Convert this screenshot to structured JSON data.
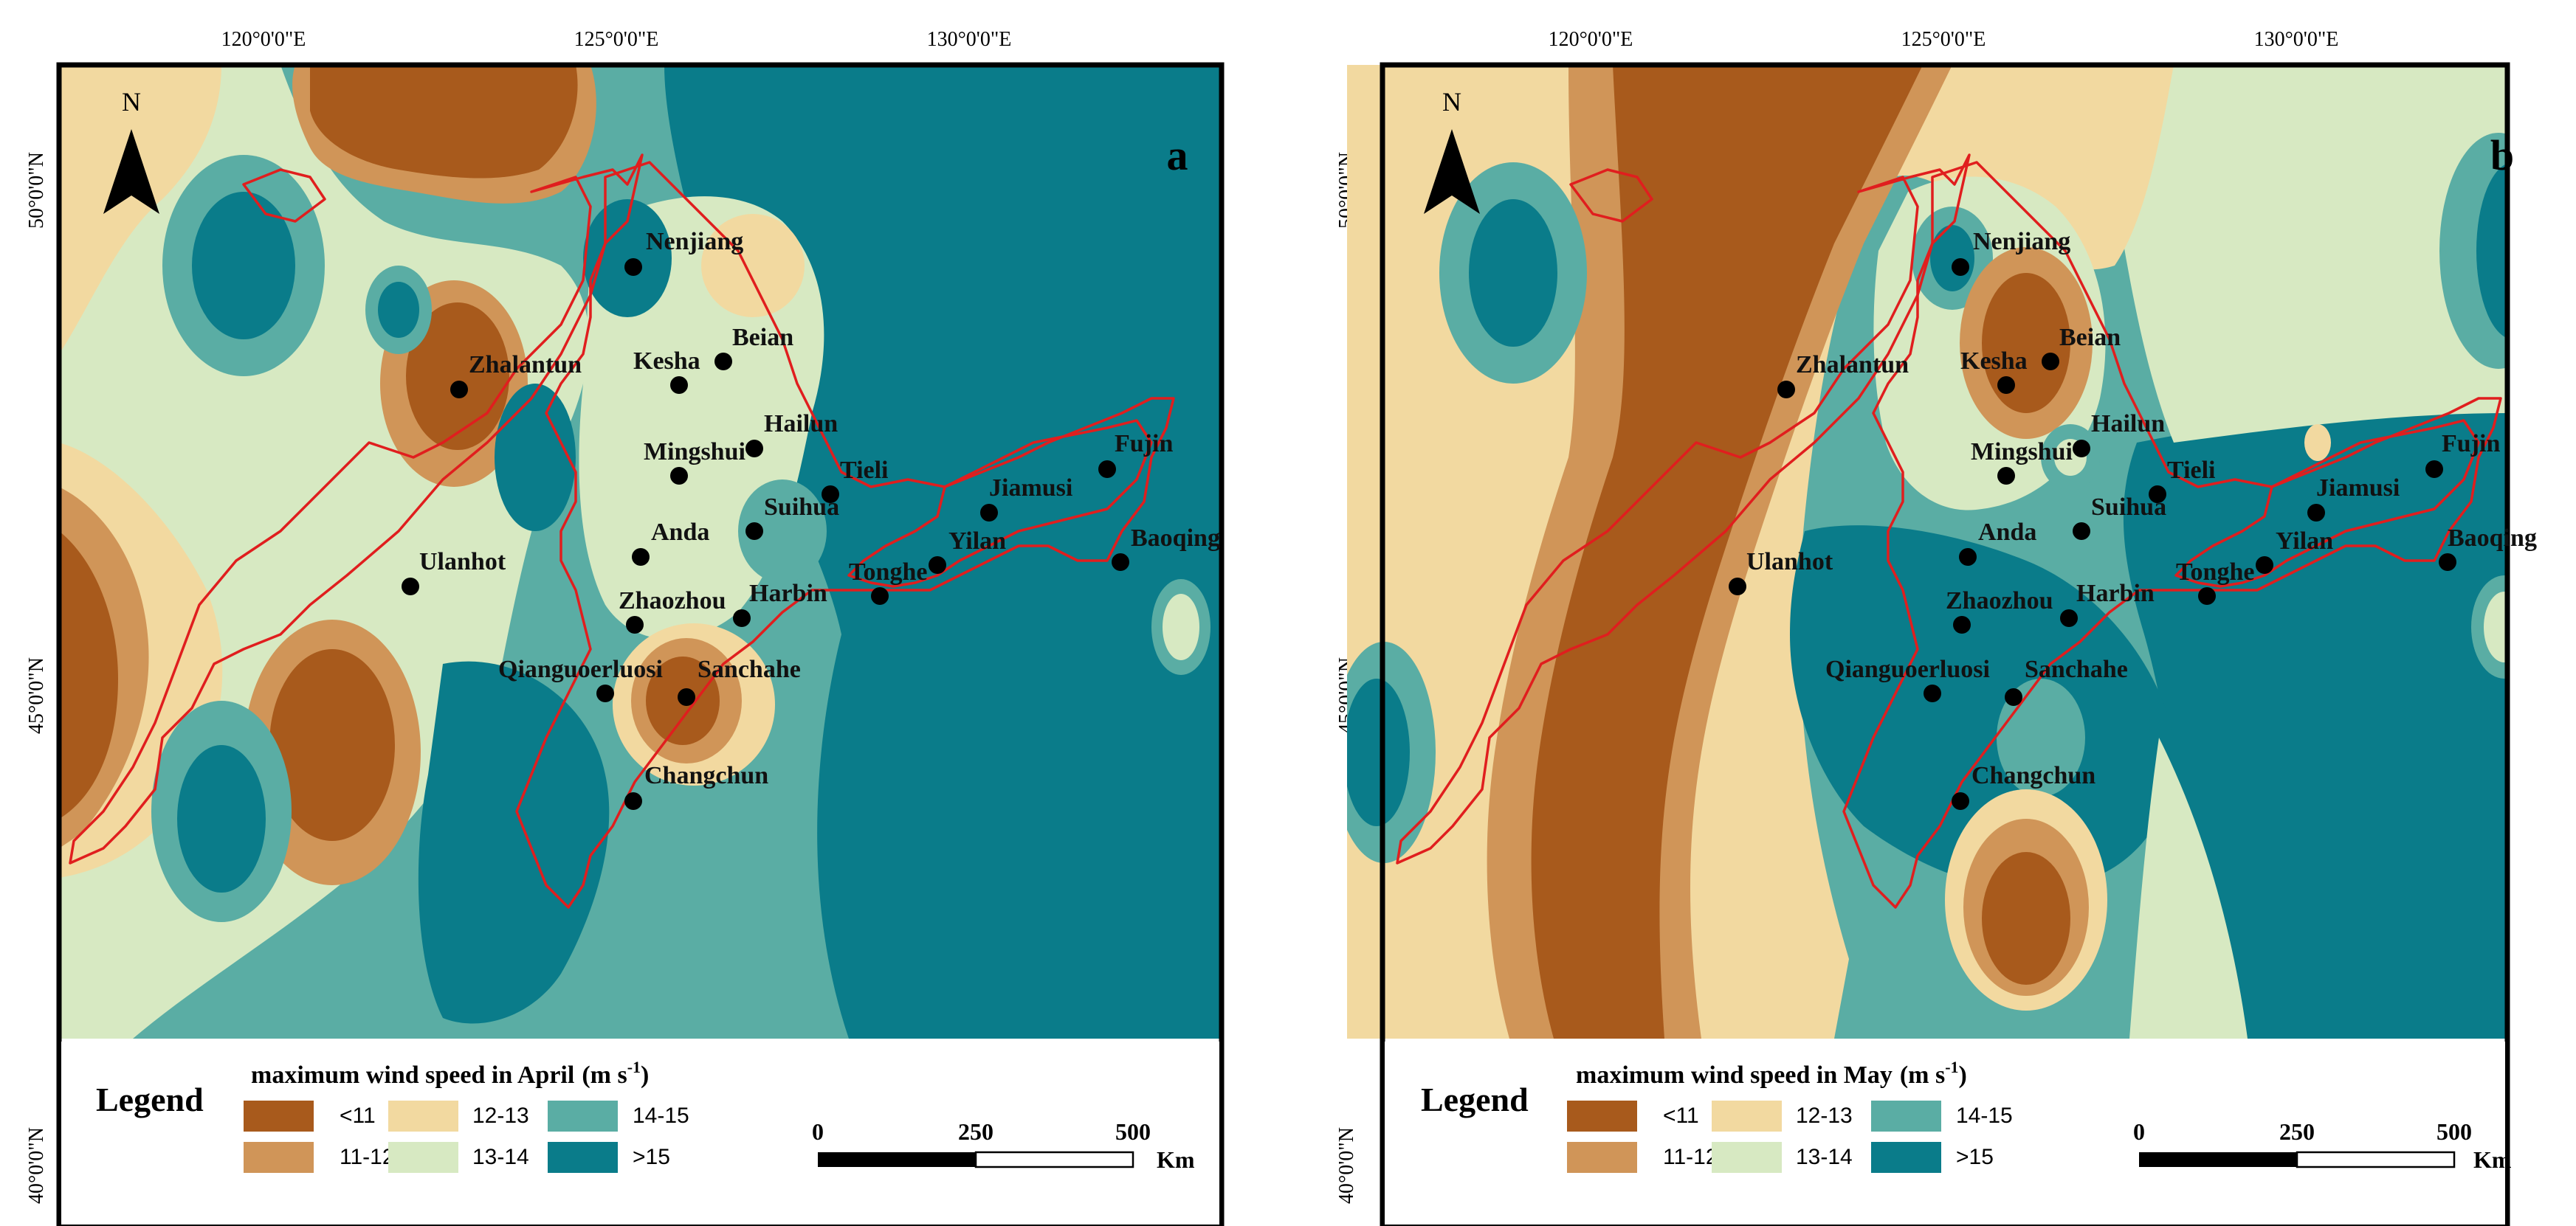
{
  "colors": {
    "lt11": "#a85a1c",
    "r11_12": "#d09558",
    "r12_13": "#f2d9a0",
    "r13_14": "#d7e9c2",
    "r14_15": "#5aada4",
    "gt15": "#0a7c8a",
    "boundary": "#e01e1e",
    "city": "#000000"
  },
  "lat_ticks": [
    "50°0'0\"N",
    "45°0'0\"N",
    "40°0'0\"N"
  ],
  "lon_ticks": [
    "120°0'0\"E",
    "125°0'0\"E",
    "130°0'0\"E"
  ],
  "north_label": "N",
  "legend": {
    "title": "Legend",
    "classes": [
      "<11",
      "11-12",
      "12-13",
      "13-14",
      "14-15",
      ">15"
    ],
    "scale_labels": [
      "0",
      "250",
      "500"
    ],
    "scale_unit": "Km"
  },
  "panels": [
    {
      "letter": "a",
      "heading": "maximum wind speed in April",
      "unit_base": "(m s",
      "unit_sup": "-1",
      "unit_close": ")"
    },
    {
      "letter": "b",
      "heading": "maximum wind speed in May",
      "unit_base": "(m s",
      "unit_sup": "-1",
      "unit_close": ")"
    }
  ],
  "cities": [
    "Nenjiang",
    "Beian",
    "Kesha",
    "Zhalantun",
    "Hailun",
    "Mingshui",
    "Tieli",
    "Fujin",
    "Jiamusi",
    "Suihua",
    "Anda",
    "Baoqing",
    "Yilan",
    "Tonghe",
    "Ulanhot",
    "Harbin",
    "Zhaozhou",
    "Qianguoerluosi",
    "Sanchahe",
    "Changchun"
  ]
}
